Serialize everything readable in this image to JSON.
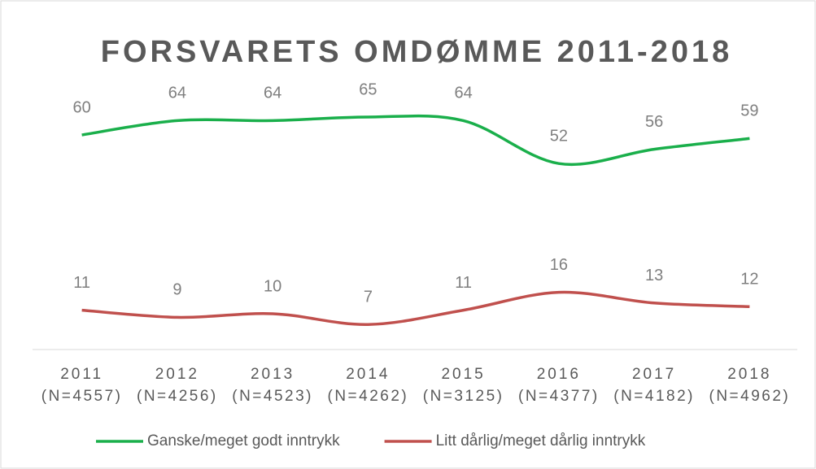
{
  "chart_data": {
    "type": "line",
    "title": "FORSVARETS OMDØMME 2011-2018",
    "categories": [
      [
        "2011",
        "(N=4557)"
      ],
      [
        "2012",
        "(N=4256)"
      ],
      [
        "2013",
        "(N=4523)"
      ],
      [
        "2014",
        "(N=4262)"
      ],
      [
        "2015",
        "(N=3125)"
      ],
      [
        "2016",
        "(N=4377)"
      ],
      [
        "2017",
        "(N=4182)"
      ],
      [
        "2018",
        "(N=4962)"
      ]
    ],
    "series": [
      {
        "name": "Ganske/meget godt inntrykk",
        "color": "#1aaf4b",
        "values": [
          60,
          64,
          64,
          65,
          64,
          52,
          56,
          59
        ]
      },
      {
        "name": "Litt dårlig/meget dårlig inntrykk",
        "color": "#c0504d",
        "values": [
          11,
          9,
          10,
          7,
          11,
          16,
          13,
          12
        ]
      }
    ],
    "ylim": [
      0,
      70
    ],
    "legend": "bottom"
  }
}
